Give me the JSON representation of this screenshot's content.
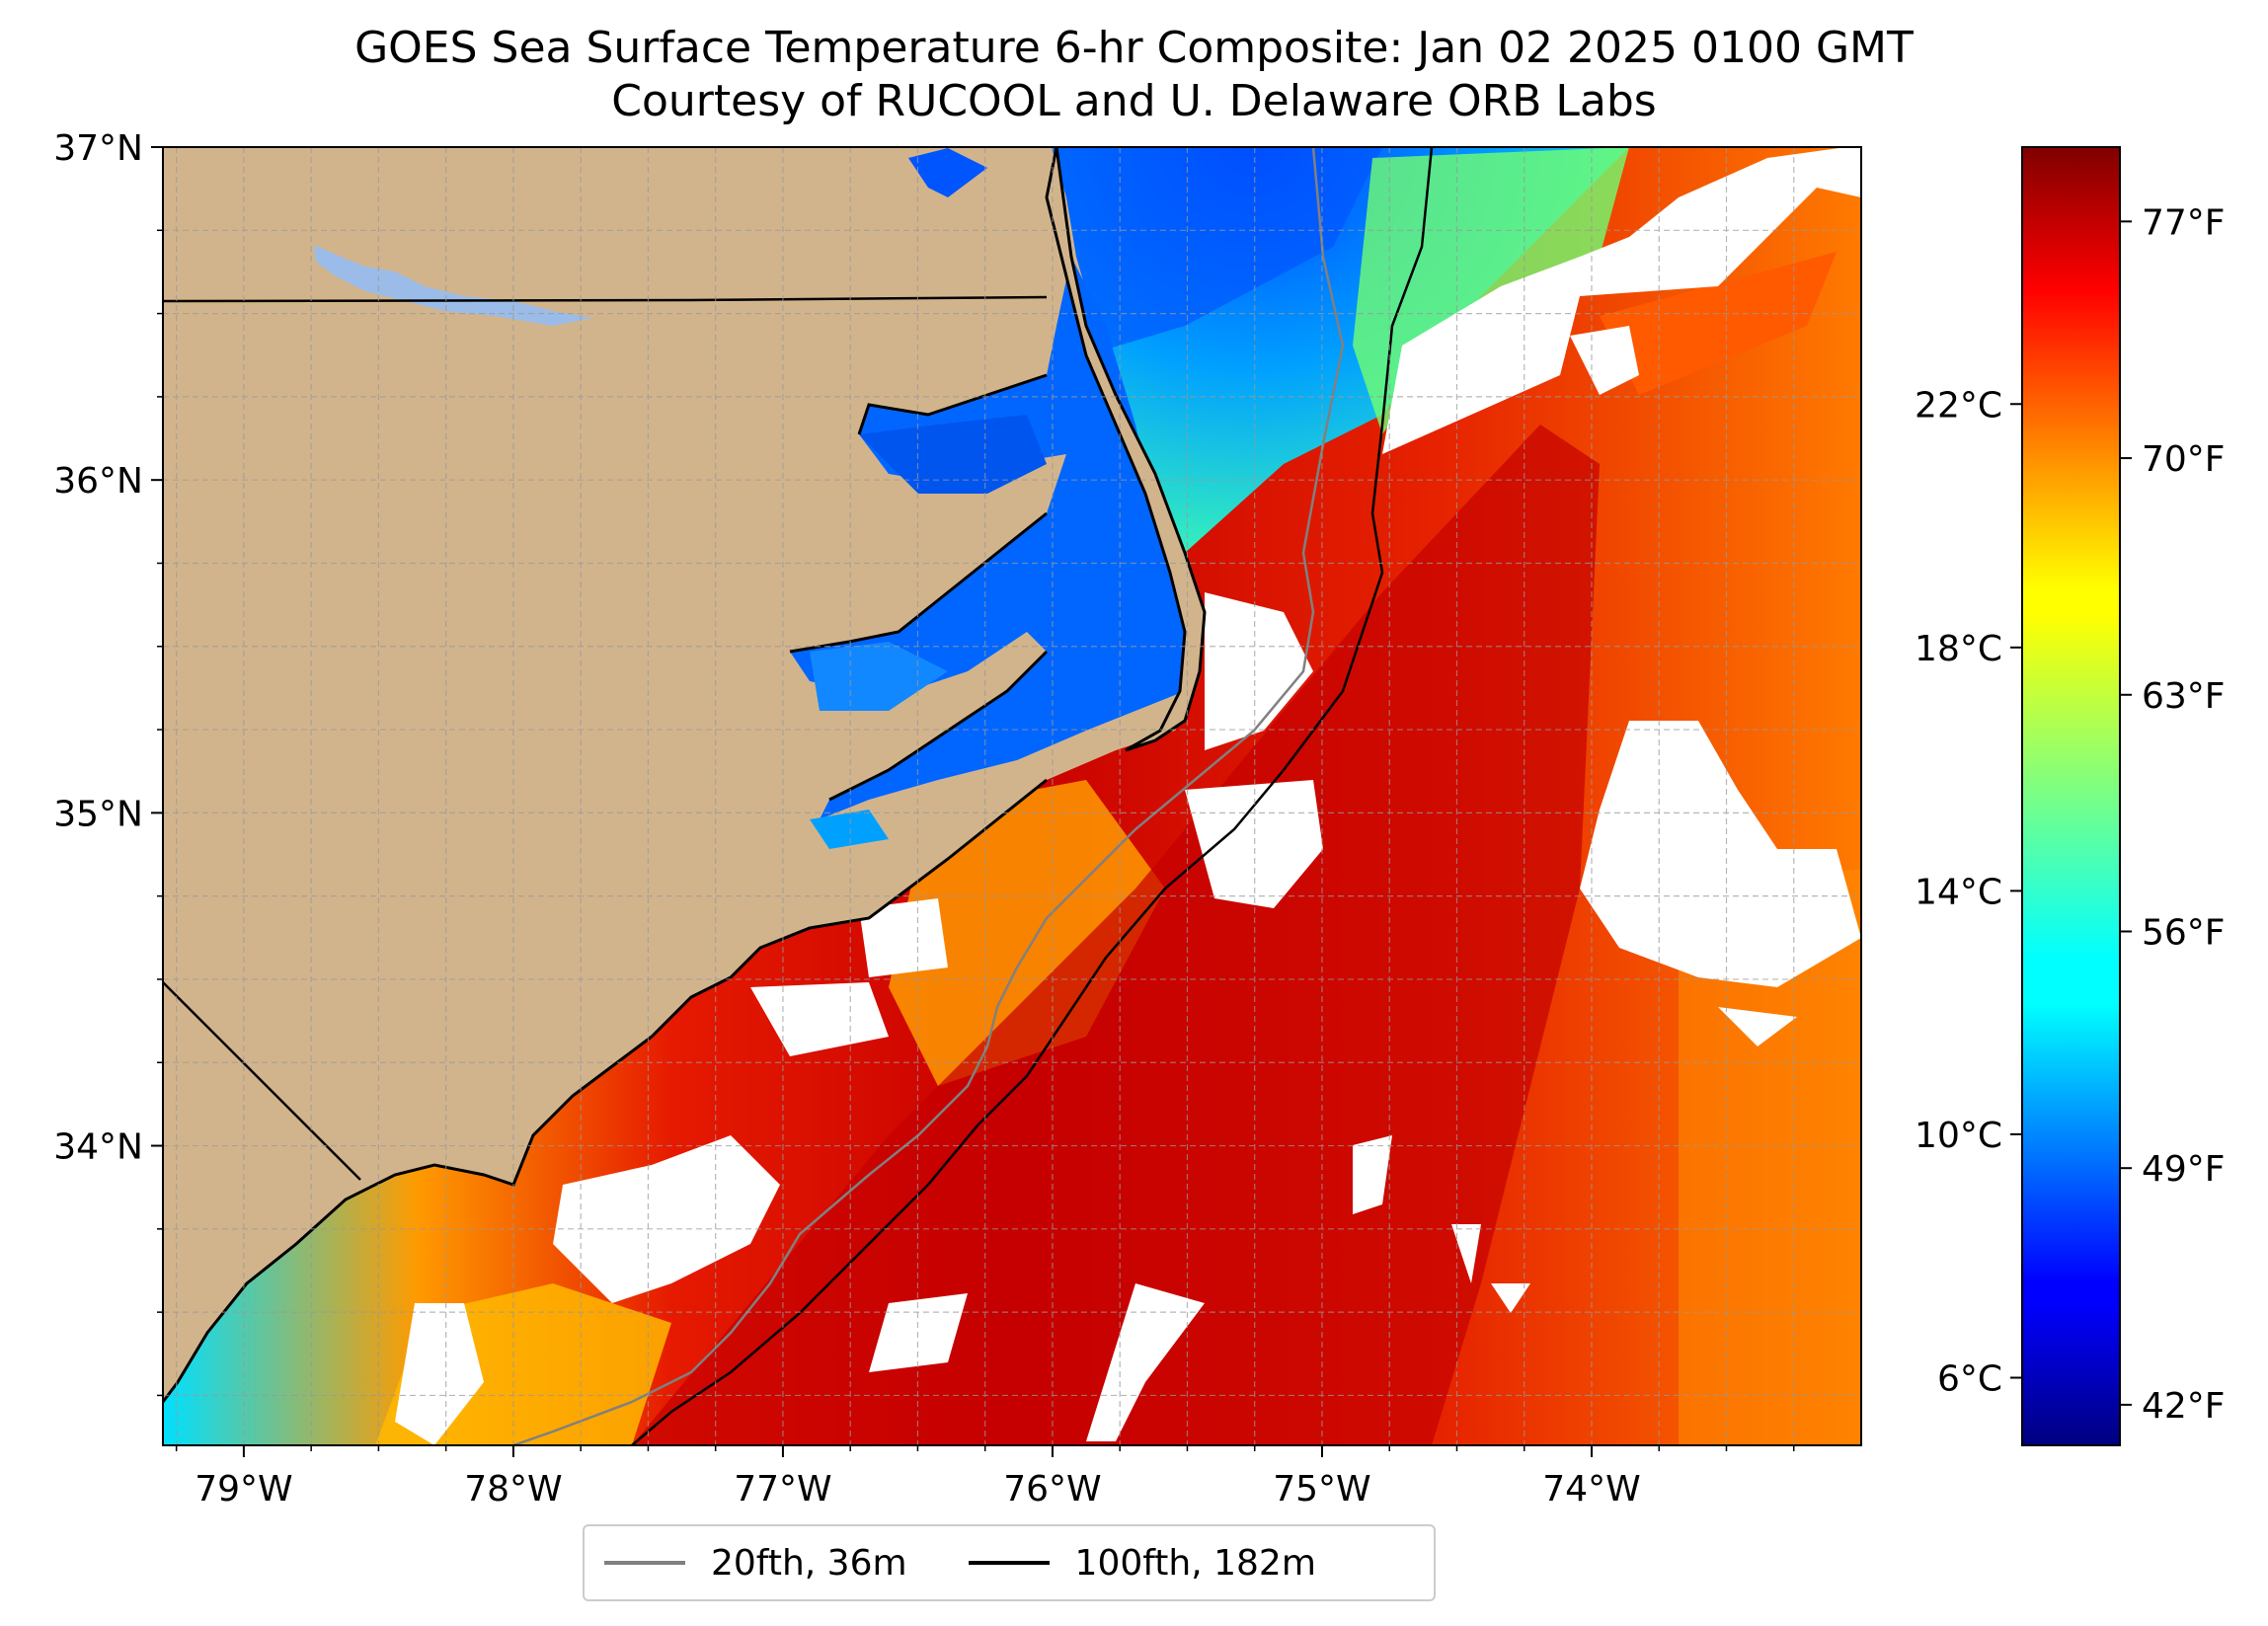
{
  "title": {
    "line1": "GOES Sea Surface Temperature 6-hr Composite: Jan 02 2025 0100 GMT",
    "line2": "Courtesy of RUCOOL and U. Delaware ORB Labs"
  },
  "map": {
    "lon_range": [
      -79.3,
      -73.0
    ],
    "lat_range": [
      33.1,
      37.0
    ],
    "lon_ticks": [
      "79°W",
      "78°W",
      "77°W",
      "76°W",
      "75°W",
      "74°W"
    ],
    "lat_ticks": [
      "34°N",
      "35°N",
      "36°N",
      "37°N"
    ],
    "land_color": "#d2b48c",
    "gridlines": true
  },
  "legend": {
    "items": [
      {
        "label": "20fth, 36m",
        "color": "#808080"
      },
      {
        "label": "100fth, 182m",
        "color": "#000000"
      }
    ]
  },
  "colorbar": {
    "colormap": "jet",
    "celsius_ticks": [
      "6°C",
      "10°C",
      "14°C",
      "18°C",
      "22°C"
    ],
    "fahrenheit_ticks": [
      "42°F",
      "49°F",
      "56°F",
      "63°F",
      "70°F",
      "77°F"
    ]
  }
}
